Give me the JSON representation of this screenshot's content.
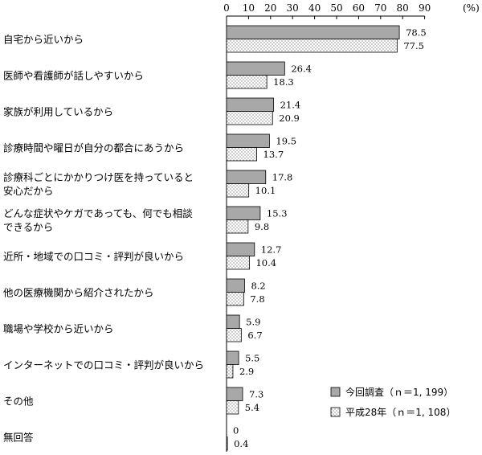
{
  "chart_data": {
    "type": "bar",
    "orientation": "horizontal",
    "unit": "(%)",
    "xlim": [
      0,
      90
    ],
    "x_ticks": [
      "0",
      "10",
      "20",
      "30",
      "40",
      "50",
      "60",
      "70",
      "80",
      "90"
    ],
    "grid": false,
    "legend_position": "bottom-right",
    "categories": [
      [
        "自宅から近いから"
      ],
      [
        "医師や看護師が話しやすいから"
      ],
      [
        "家族が利用しているから"
      ],
      [
        "診療時間や曜日が自分の都合にあうから"
      ],
      [
        "診療科ごとにかかりつけ医を持っていると",
        "安心だから"
      ],
      [
        "どんな症状やケガであっても、何でも相談",
        "できるから"
      ],
      [
        "近所・地域での口コミ・評判が良いから"
      ],
      [
        "他の医療機関から紹介されたから"
      ],
      [
        "職場や学校から近いから"
      ],
      [
        "インターネットでの口コミ・評判が良いから"
      ],
      [
        "その他"
      ],
      [
        "無回答"
      ]
    ],
    "series": [
      {
        "name": "今回調査（ｎ＝1, 199）",
        "color": "#a8a8a8",
        "pattern": "solid-gray",
        "values": [
          78.5,
          26.4,
          21.4,
          19.5,
          17.8,
          15.3,
          12.7,
          8.2,
          5.9,
          5.5,
          7.3,
          0
        ],
        "value_labels": [
          "78.5",
          "26.4",
          "21.4",
          "19.5",
          "17.8",
          "15.3",
          "12.7",
          "8.2",
          "5.9",
          "5.5",
          "7.3",
          "0"
        ]
      },
      {
        "name": "平成28年（ｎ＝1, 108）",
        "color": "#ffffff",
        "pattern": "dotted",
        "values": [
          77.5,
          18.3,
          20.9,
          13.7,
          10.1,
          9.8,
          10.4,
          7.8,
          6.7,
          2.9,
          5.4,
          0.4
        ],
        "value_labels": [
          "77.5",
          "18.3",
          "20.9",
          "13.7",
          "10.1",
          "9.8",
          "10.4",
          "7.8",
          "6.7",
          "2.9",
          "5.4",
          "0.4"
        ]
      }
    ]
  }
}
